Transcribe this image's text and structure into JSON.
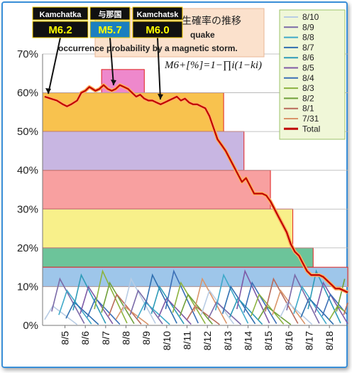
{
  "chart_data": {
    "type": "line",
    "title_lines": [
      "生確率の推移",
      "quake",
      "occurrence probability by a magnetic storm."
    ],
    "formula": "M6+[%]=1−∏i(1−ki)",
    "yticks": [
      "0%",
      "10%",
      "20%",
      "30%",
      "40%",
      "50%",
      "60%",
      "70%"
    ],
    "ylim": [
      0,
      70
    ],
    "xtick_labels": [
      "8/5",
      "8/6",
      "8/7",
      "8/8",
      "8/9",
      "8/10",
      "8/11",
      "8/12",
      "8/13",
      "8/14",
      "8/15",
      "8/16",
      "8/17",
      "8/18"
    ],
    "legend": [
      {
        "name": "8/10",
        "color": "#b8cce4"
      },
      {
        "name": "8/9",
        "color": "#7a6aa8"
      },
      {
        "name": "8/8",
        "color": "#3fa9c9"
      },
      {
        "name": "8/7",
        "color": "#2f6fb0"
      },
      {
        "name": "8/6",
        "color": "#2e9bb8"
      },
      {
        "name": "8/5",
        "color": "#7e5aa6"
      },
      {
        "name": "8/4",
        "color": "#3b6fb6"
      },
      {
        "name": "8/3",
        "color": "#8cb33f"
      },
      {
        "name": "8/2",
        "color": "#6fa03a"
      },
      {
        "name": "8/1",
        "color": "#b86a5a"
      },
      {
        "name": "7/31",
        "color": "#d9956a"
      },
      {
        "name": "Total",
        "color": "#c00000"
      }
    ],
    "total_series": {
      "name": "Total",
      "x": [
        4.0,
        4.3,
        4.6,
        4.9,
        5.1,
        5.3,
        5.6,
        5.8,
        6.0,
        6.2,
        6.5,
        6.7,
        6.9,
        7.1,
        7.3,
        7.5,
        7.7,
        7.9,
        8.1,
        8.3,
        8.5,
        8.7,
        8.9,
        9.1,
        9.3,
        9.5,
        9.7,
        9.9,
        10.1,
        10.3,
        10.5,
        10.7,
        10.9,
        11.1,
        11.3,
        11.5,
        11.7,
        11.9,
        12.1,
        12.3,
        12.5,
        12.7,
        12.9,
        13.1,
        13.3,
        13.5,
        13.7,
        13.9,
        14.1,
        14.3,
        14.5,
        14.7,
        14.9,
        15.1,
        15.3,
        15.5,
        15.7,
        15.9,
        16.1,
        16.3,
        16.5,
        16.7,
        16.9,
        17.1,
        17.3,
        17.5,
        17.7,
        17.9,
        18.1,
        18.3,
        18.5,
        18.7,
        18.9
      ],
      "y": [
        59,
        58.5,
        58,
        57,
        56.5,
        57,
        58,
        60,
        60.5,
        61.5,
        60.5,
        61,
        62,
        61,
        60.5,
        61,
        62,
        61.5,
        61,
        60,
        59,
        59.5,
        58.5,
        58,
        58,
        57.5,
        57,
        57.5,
        58,
        58.5,
        59,
        58,
        58.5,
        57.5,
        57,
        57,
        56.5,
        56,
        54,
        51,
        48,
        46.5,
        45,
        43,
        41,
        39,
        37,
        38,
        36,
        34,
        34,
        34,
        33.5,
        32,
        30,
        28,
        26,
        24,
        21,
        19,
        18,
        16,
        14,
        13,
        13,
        13,
        12.5,
        11.5,
        10.5,
        9.5,
        9.5,
        9,
        8.5
      ]
    },
    "bands": [
      {
        "x0": 6.8,
        "x1": 8.9,
        "y0": 60,
        "y1": 66,
        "color": "#ee88cc"
      },
      {
        "x0": 3.9,
        "x1": 12.8,
        "y0": 50,
        "y1": 60,
        "color": "#f8c24e"
      },
      {
        "x0": 3.9,
        "x1": 13.8,
        "y0": 40,
        "y1": 50,
        "color": "#c8b6e2"
      },
      {
        "x0": 3.9,
        "x1": 15.1,
        "y0": 30,
        "y1": 40,
        "color": "#f8a0a0"
      },
      {
        "x0": 3.9,
        "x1": 16.2,
        "y0": 20,
        "y1": 30,
        "color": "#f8f08a"
      },
      {
        "x0": 3.9,
        "x1": 17.2,
        "y0": 15,
        "y1": 20,
        "color": "#6cc49a"
      },
      {
        "x0": 3.9,
        "x1": 18.9,
        "y0": 10,
        "y1": 15,
        "color": "#9ec6ea"
      }
    ],
    "callouts": [
      {
        "top": "Kamchatka",
        "mag": "M6.2",
        "mag_bg": "#111111"
      },
      {
        "top": "与那国",
        "mag": "M5.7",
        "mag_bg": "#1a7fc0"
      },
      {
        "top": "Kamchatsk",
        "mag": "M6.0",
        "mag_bg": "#111111"
      }
    ]
  }
}
